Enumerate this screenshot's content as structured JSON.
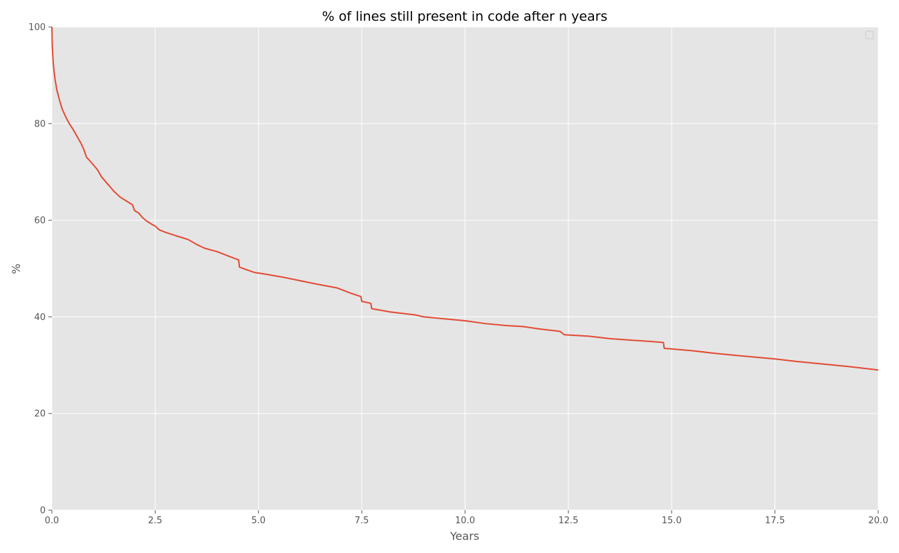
{
  "colors": {
    "background": "#e5e5e5",
    "grid": "#ffffff",
    "line": "#e24a33",
    "text": "#555555",
    "title": "#000000"
  },
  "chart_data": {
    "type": "line",
    "title": "% of lines still present in code after n years",
    "xlabel": "Years",
    "ylabel": "%",
    "xlim": [
      0,
      20
    ],
    "ylim": [
      0,
      100
    ],
    "x_ticks": [
      "0.0",
      "2.5",
      "5.0",
      "7.5",
      "10.0",
      "12.5",
      "15.0",
      "17.5",
      "20.0"
    ],
    "x_tick_values": [
      0,
      2.5,
      5,
      7.5,
      10,
      12.5,
      15,
      17.5,
      20
    ],
    "y_ticks": [
      "0",
      "20",
      "40",
      "60",
      "80",
      "100"
    ],
    "y_tick_values": [
      0,
      20,
      40,
      60,
      80,
      100
    ],
    "grid": true,
    "legend": "top-right, empty",
    "series": [
      {
        "x": [
          0,
          0.01,
          0.03,
          0.05,
          0.08,
          0.12,
          0.18,
          0.25,
          0.33,
          0.42,
          0.5,
          0.6,
          0.7,
          0.78,
          0.82,
          0.84,
          0.9,
          1.0,
          1.1,
          1.2,
          1.35,
          1.5,
          1.65,
          1.8,
          1.95,
          1.98,
          2.0,
          2.1,
          2.2,
          2.3,
          2.45,
          2.5,
          2.6,
          2.75,
          3.0,
          3.3,
          3.5,
          3.7,
          4.0,
          4.3,
          4.52,
          4.54,
          4.7,
          4.9,
          5.2,
          5.6,
          6.0,
          6.4,
          6.9,
          7.2,
          7.48,
          7.5,
          7.72,
          7.74,
          8.2,
          8.8,
          9.0,
          9.5,
          10.0,
          10.5,
          11.0,
          11.4,
          11.8,
          12.3,
          12.4,
          13.0,
          13.5,
          14.0,
          14.5,
          14.8,
          14.82,
          15.5,
          16.0,
          16.6,
          17.5,
          18.0,
          18.6,
          19.3,
          20.0
        ],
        "y": [
          100,
          96,
          93,
          91,
          89,
          87,
          85,
          83,
          81.5,
          80,
          79,
          77.5,
          76,
          74.5,
          73.5,
          73,
          72.5,
          71.5,
          70.5,
          69,
          67.5,
          66,
          64.8,
          64,
          63.2,
          62.5,
          62,
          61.5,
          60.5,
          59.8,
          59,
          58.8,
          58,
          57.5,
          56.8,
          56,
          55,
          54.2,
          53.5,
          52.5,
          51.8,
          50.3,
          49.8,
          49.2,
          48.8,
          48.2,
          47.5,
          46.8,
          46,
          45,
          44.2,
          43.2,
          42.8,
          41.7,
          41,
          40.4,
          40,
          39.6,
          39.2,
          38.6,
          38.2,
          38,
          37.5,
          37,
          36.3,
          36,
          35.5,
          35.2,
          34.9,
          34.7,
          33.5,
          33,
          32.5,
          32,
          31.3,
          30.8,
          30.3,
          29.7,
          29
        ]
      }
    ]
  }
}
